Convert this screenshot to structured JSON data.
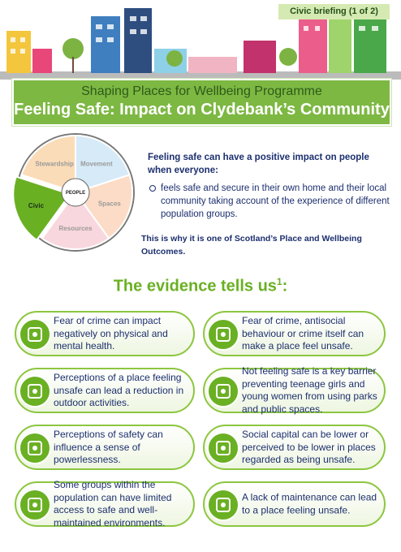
{
  "header": {
    "badge": "Civic briefing (1 of 2)",
    "programme": "Shaping Places for Wellbeing Programme",
    "title": "Feeling Safe: Impact on Clydebank’s Community"
  },
  "wheel": {
    "segments": [
      "Movement",
      "Spaces",
      "Resources",
      "Civic",
      "Stewardship"
    ],
    "centre": "PEOPLE"
  },
  "intro": {
    "lead": "Feeling safe can have a positive impact on people when everyone:",
    "bullet": "feels safe and secure in their own home and their local community taking account of the experience of different population groups.",
    "note": "This is why it is one of Scotland’s Place and Wellbeing Outcomes."
  },
  "evidence": {
    "heading": "The evidence tells us",
    "footnote_mark": "1",
    "punctuation": ":",
    "cards": [
      "Fear of crime can impact negatively on physical and mental health.",
      "Fear of crime, antisocial behaviour or crime itself can make a place feel unsafe.",
      "Perceptions of a place feeling unsafe can lead  a reduction in outdoor activities.",
      "Not feeling safe is a key barrier preventing teenage girls and young women from using parks and public spaces.",
      "Perceptions of safety can influence a sense of powerlessness.",
      "Social capital can be lower or perceived to be lower in places regarded as being unsafe.",
      "Some groups within the population can have limited access to safe and well-maintained environments.",
      "A lack of maintenance can lead to a place feeling unsafe."
    ]
  }
}
